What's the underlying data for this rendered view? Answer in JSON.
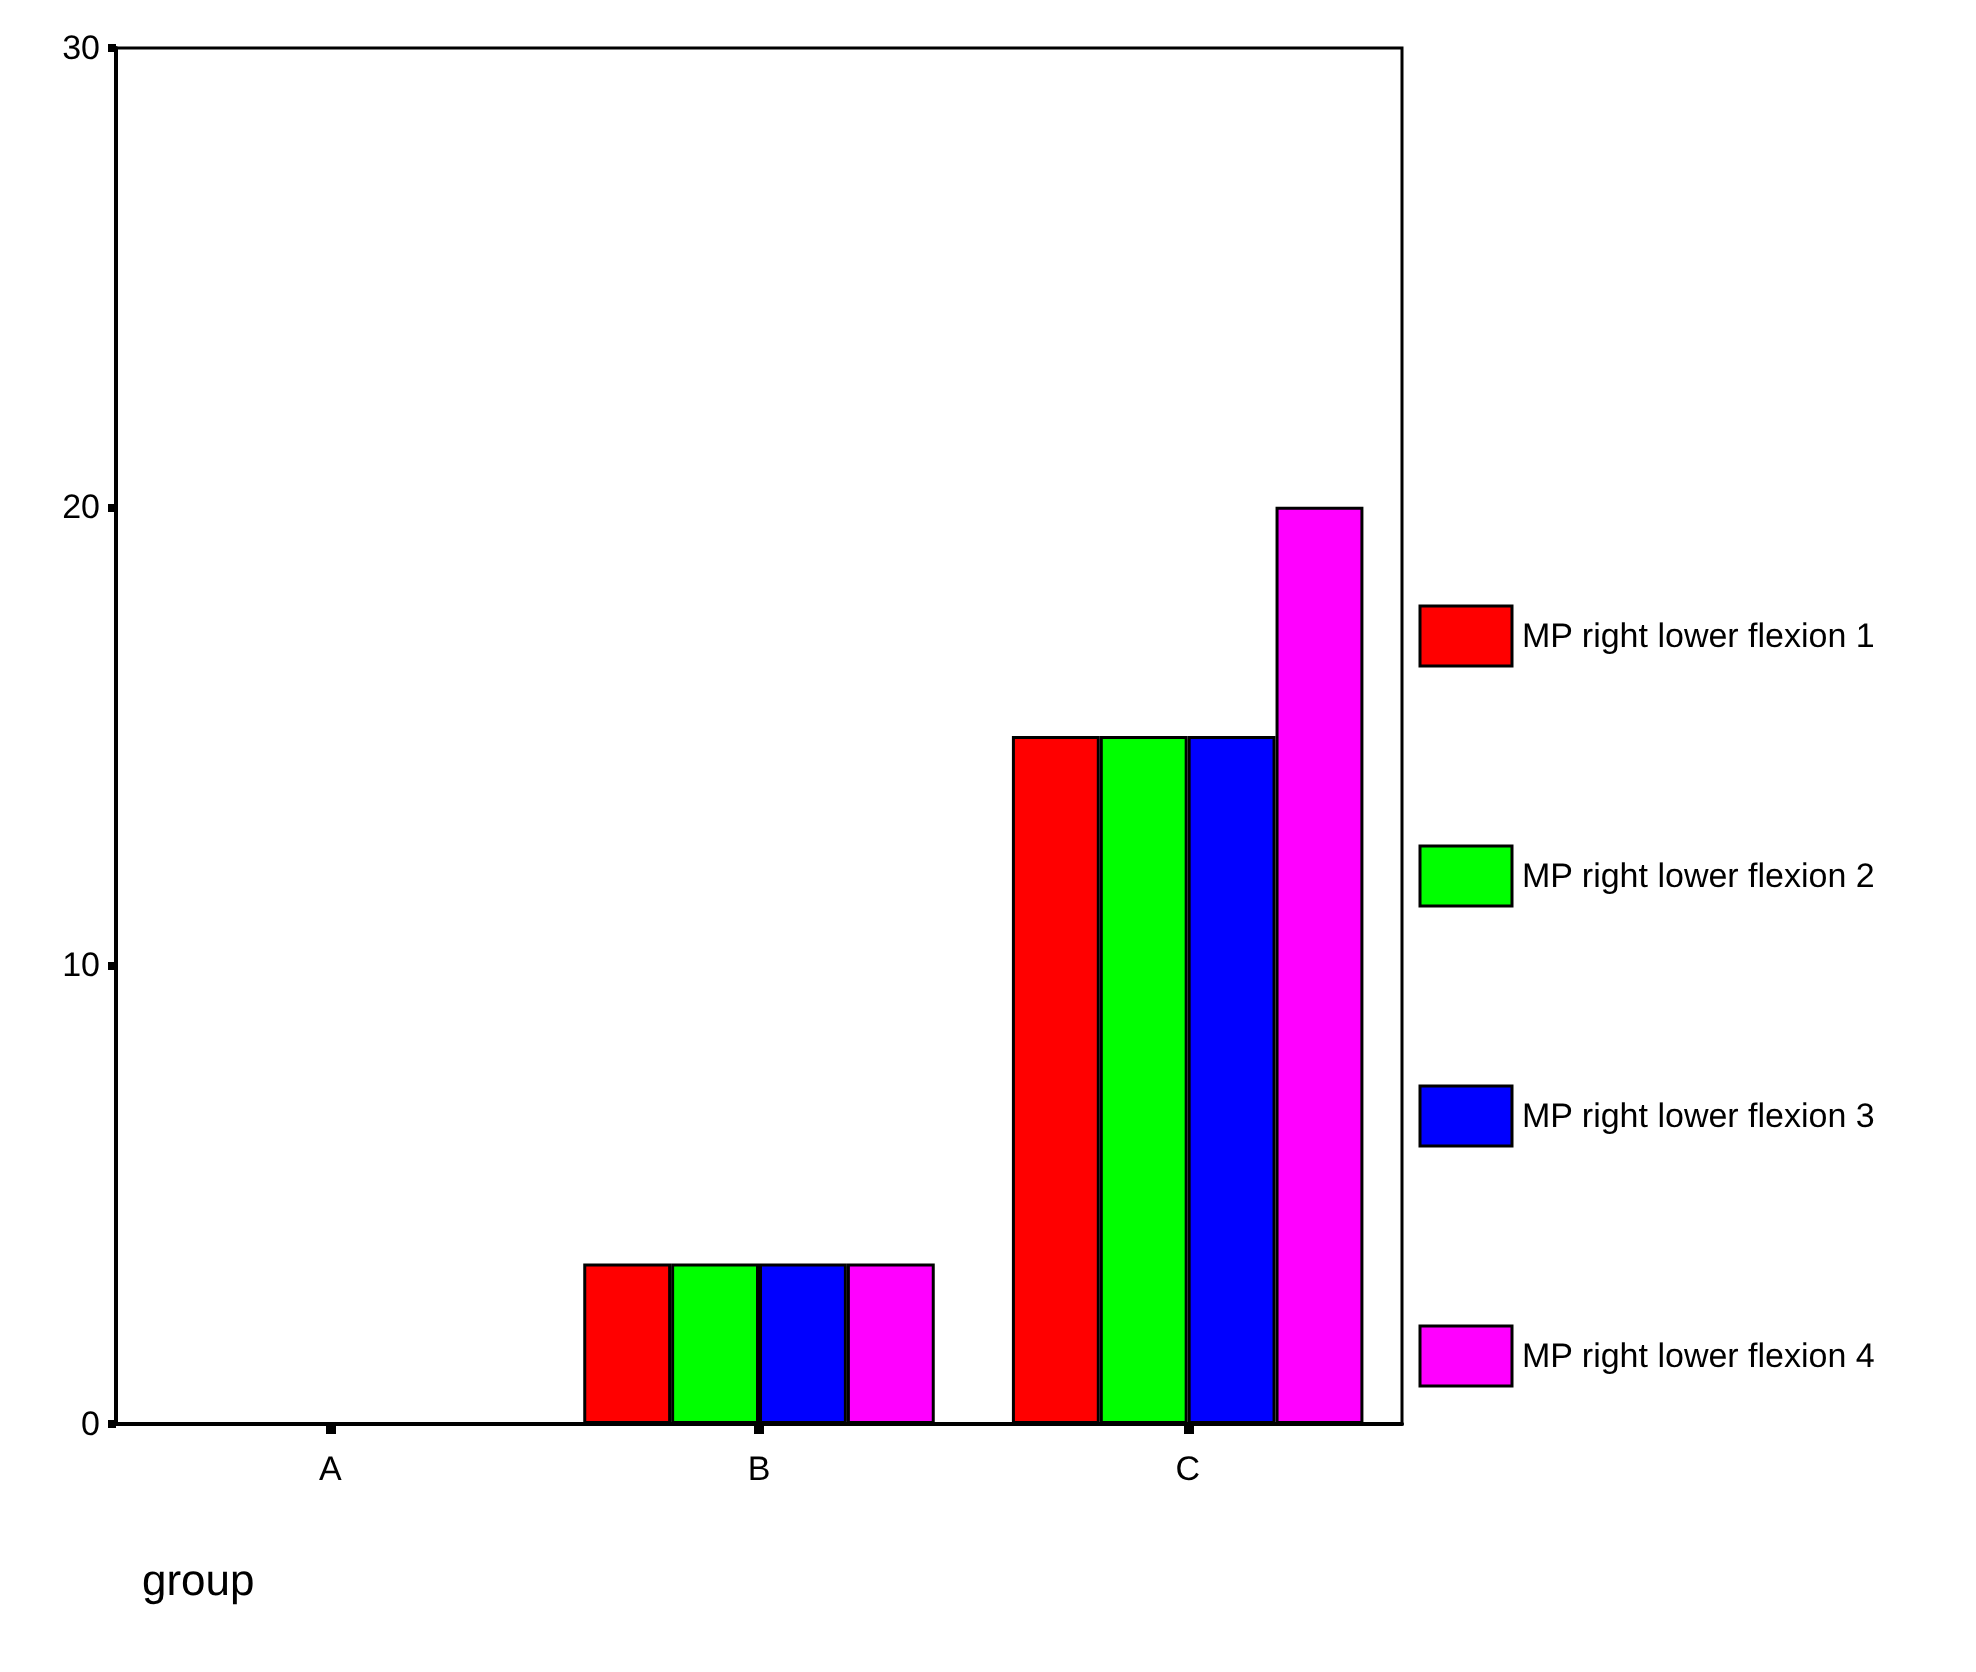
{
  "chart_data": {
    "type": "bar",
    "xlabel": "group",
    "categories": [
      "A",
      "B",
      "C"
    ],
    "series": [
      {
        "name": "MP right lower flexion 1",
        "color": "#ff0000",
        "values": [
          0,
          3.5,
          15
        ]
      },
      {
        "name": "MP right lower flexion 2",
        "color": "#00ff00",
        "values": [
          0,
          3.5,
          15
        ]
      },
      {
        "name": "MP right lower flexion 3",
        "color": "#0000ff",
        "values": [
          0,
          3.5,
          15
        ]
      },
      {
        "name": "MP right lower flexion 4",
        "color": "#ff00ff",
        "values": [
          0,
          3.5,
          20
        ]
      }
    ],
    "ylim": [
      0,
      30
    ],
    "yticks": [
      0,
      10,
      20,
      30
    ],
    "grid": false,
    "legend": "right"
  }
}
